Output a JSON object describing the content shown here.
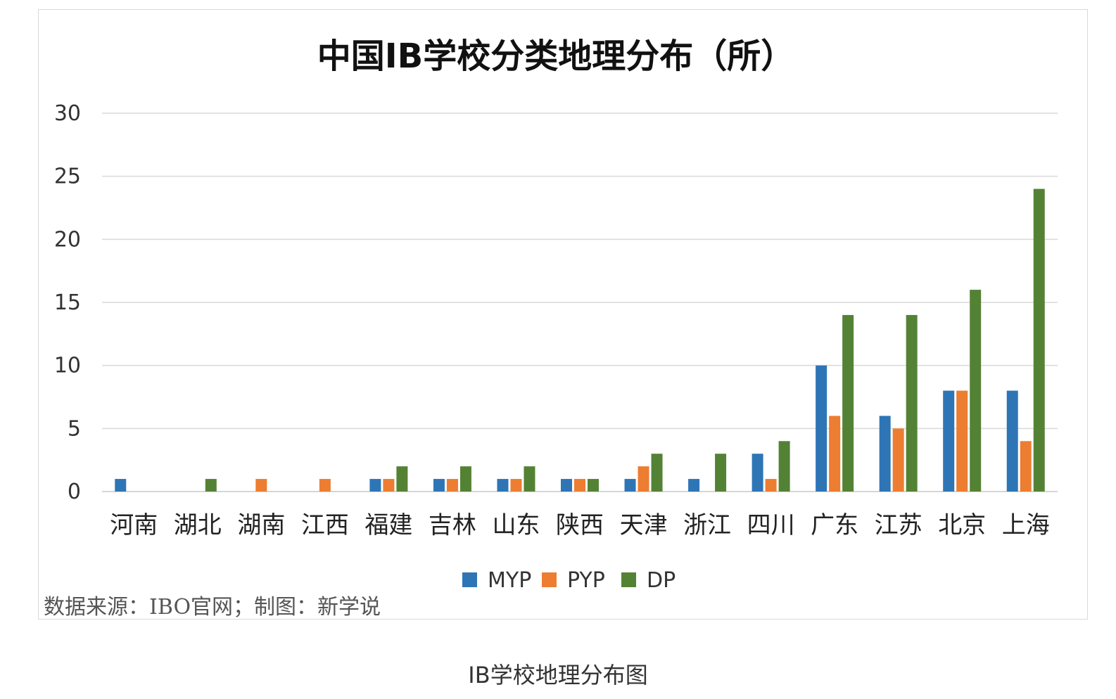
{
  "chart_data": {
    "type": "bar",
    "title": "中国IB学校分类地理分布（所）",
    "categories": [
      "河南",
      "湖北",
      "湖南",
      "江西",
      "福建",
      "吉林",
      "山东",
      "陕西",
      "天津",
      "浙江",
      "四川",
      "广东",
      "江苏",
      "北京",
      "上海"
    ],
    "series": [
      {
        "name": "MYP",
        "color": "#2e75b6",
        "values": [
          1,
          0,
          0,
          0,
          1,
          1,
          1,
          1,
          1,
          1,
          3,
          10,
          6,
          8,
          8
        ]
      },
      {
        "name": "PYP",
        "color": "#ed7d31",
        "values": [
          0,
          0,
          1,
          1,
          1,
          1,
          1,
          1,
          2,
          0,
          1,
          6,
          5,
          8,
          4
        ]
      },
      {
        "name": "DP",
        "color": "#548235",
        "values": [
          0,
          1,
          0,
          0,
          2,
          2,
          2,
          1,
          3,
          3,
          4,
          14,
          14,
          16,
          24
        ]
      }
    ],
    "ylim": [
      0,
      30
    ],
    "yticks": [
      0,
      5,
      10,
      15,
      20,
      25,
      30
    ],
    "grid": true,
    "legend_position": "bottom",
    "xlabel": "",
    "ylabel": ""
  },
  "source_note": "数据来源：IBO官网；制图：新学说",
  "caption": "IB学校地理分布图"
}
